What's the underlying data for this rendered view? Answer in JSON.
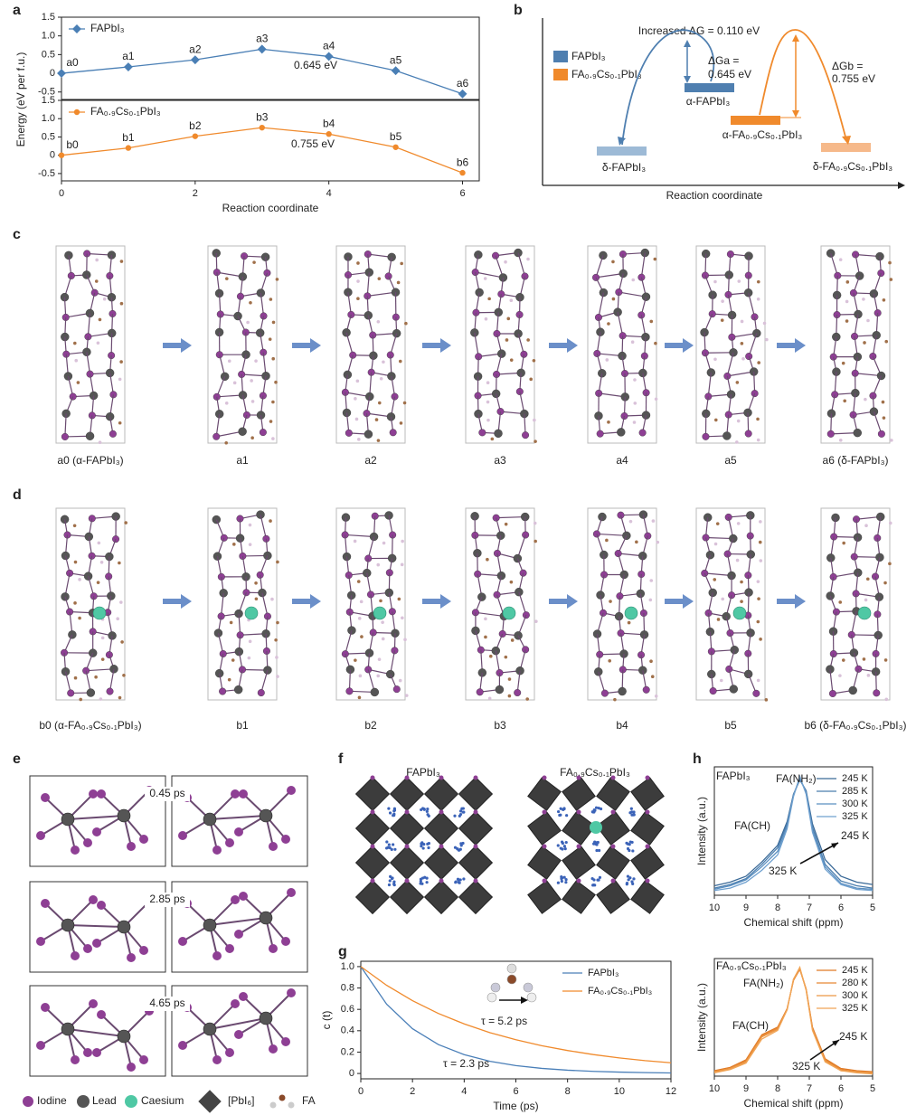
{
  "panel_labels": [
    "a",
    "b",
    "c",
    "d",
    "e",
    "f",
    "g",
    "h"
  ],
  "chart_data": [
    {
      "type": "line",
      "y_label": "Energy (eV per f.u.)",
      "x": [
        0,
        1,
        2,
        3,
        4,
        5,
        6
      ],
      "xlim": [
        0,
        6.25
      ],
      "ylim": [
        -0.7,
        1.5
      ],
      "yticks": [
        -0.5,
        0,
        0.5,
        {
          "value": 1,
          "label": "1.0"
        },
        1.5
      ],
      "legend": "upper left",
      "markers": true,
      "series": [
        {
          "name": "FAPbI₃",
          "color": "#4a7fb5",
          "values": [
            0,
            0.17,
            0.36,
            0.645,
            0.45,
            0.07,
            -0.55
          ],
          "labels": [
            "a0",
            "a1",
            "a2",
            "a3",
            "a4",
            "a5",
            "a6"
          ]
        }
      ],
      "annotations": [
        "0.645 eV"
      ]
    },
    {
      "type": "line",
      "x_label": "Reaction coordinate",
      "x": [
        0,
        1,
        2,
        3,
        4,
        5,
        6
      ],
      "xlim": [
        0,
        6.25
      ],
      "ylim": [
        -0.7,
        1.5
      ],
      "xticks": [
        0,
        2,
        4,
        6
      ],
      "yticks": [
        -0.5,
        0,
        0.5,
        {
          "value": 1,
          "label": "1.0"
        },
        1.5
      ],
      "legend": "upper left",
      "markers": true,
      "series": [
        {
          "name": "FA₀.₉Cs₀.₁PbI₃",
          "color": "#f08a2c",
          "values": [
            0,
            0.2,
            0.52,
            0.755,
            0.58,
            0.22,
            -0.48
          ],
          "labels": [
            "b0",
            "b1",
            "b2",
            "b3",
            "b4",
            "b5",
            "b6"
          ]
        }
      ],
      "annotations": [
        "0.755 eV"
      ]
    },
    {
      "type": "line",
      "x_label": "Time (ps)",
      "y_label": "c (t)",
      "x": [
        0,
        1,
        2,
        3,
        4,
        5,
        6,
        7,
        8,
        9,
        10,
        11,
        12
      ],
      "xlim": [
        0,
        12
      ],
      "ylim": [
        -0.05,
        1.05
      ],
      "xticks": [
        0,
        2,
        4,
        6,
        8,
        10,
        12
      ],
      "yticks": [
        0,
        0.2,
        0.4,
        0.6,
        0.8,
        {
          "value": 1,
          "label": "1.0"
        }
      ],
      "legend": "upper right",
      "series": [
        {
          "name": "FAPbI₃",
          "color": "#4a7fb8",
          "values": [
            1,
            0.648,
            0.419,
            0.271,
            0.176,
            0.114,
            0.074,
            0.048,
            0.031,
            0.02,
            0.013,
            0.008,
            0.005
          ]
        },
        {
          "name": "FA₀.₉Cs₀.₁PbI₃",
          "color": "#f08a2c",
          "values": [
            1,
            0.825,
            0.681,
            0.562,
            0.464,
            0.382,
            0.316,
            0.26,
            0.215,
            0.177,
            0.146,
            0.12,
            0.1
          ]
        }
      ],
      "annotations": [
        "τ = 2.3 ps",
        "τ = 5.2 ps"
      ]
    },
    {
      "type": "line",
      "x_label": "Chemical shift (ppm)",
      "y_label": "Intensity (a.u.)",
      "x": [
        10,
        9.5,
        9,
        8.5,
        8,
        7.7,
        7.5,
        7.3,
        7.1,
        6.9,
        6.5,
        6,
        5.5,
        5
      ],
      "xlim": [
        10,
        5
      ],
      "ylim": [
        0,
        1.08
      ],
      "xticks": [
        10,
        9,
        8,
        7,
        6,
        5
      ],
      "legend": "upper right",
      "series": [
        {
          "name": "245 K",
          "color": "#3b6a98",
          "values": [
            0.08,
            0.11,
            0.16,
            0.28,
            0.42,
            0.62,
            0.85,
            0.97,
            0.88,
            0.6,
            0.3,
            0.16,
            0.11,
            0.09
          ]
        },
        {
          "name": "285 K",
          "color": "#4a7dae",
          "values": [
            0.06,
            0.09,
            0.14,
            0.26,
            0.4,
            0.6,
            0.84,
            0.98,
            0.87,
            0.57,
            0.26,
            0.12,
            0.08,
            0.06
          ]
        },
        {
          "name": "300 K",
          "color": "#5b8fc0",
          "values": [
            0.05,
            0.08,
            0.13,
            0.24,
            0.37,
            0.58,
            0.84,
            0.99,
            0.86,
            0.55,
            0.24,
            0.1,
            0.06,
            0.05
          ]
        },
        {
          "name": "325 K",
          "color": "#6fa0cf",
          "values": [
            0.04,
            0.06,
            0.11,
            0.21,
            0.34,
            0.56,
            0.83,
            1,
            0.85,
            0.53,
            0.22,
            0.09,
            0.05,
            0.04
          ]
        }
      ],
      "annotations": [
        "FAPbI₃",
        "FA(NH₂)",
        "FA(CH)",
        "245 K",
        "325 K"
      ]
    },
    {
      "type": "line",
      "x_label": "Chemical shift (ppm)",
      "y_label": "Intensity (a.u.)",
      "x": [
        10,
        9.5,
        9,
        8.5,
        8,
        7.7,
        7.5,
        7.3,
        7.1,
        6.9,
        6.5,
        6,
        5.5,
        5
      ],
      "xlim": [
        10,
        5
      ],
      "ylim": [
        0,
        1.08
      ],
      "xticks": [
        10,
        9,
        8,
        7,
        6,
        5
      ],
      "legend": "upper right",
      "series": [
        {
          "name": "245 K",
          "color": "#e07a25",
          "values": [
            0.05,
            0.08,
            0.15,
            0.38,
            0.45,
            0.62,
            0.88,
            0.98,
            0.8,
            0.45,
            0.16,
            0.07,
            0.05,
            0.04
          ]
        },
        {
          "name": "280 K",
          "color": "#e68733",
          "values": [
            0.04,
            0.07,
            0.14,
            0.37,
            0.44,
            0.62,
            0.88,
            0.99,
            0.8,
            0.44,
            0.15,
            0.06,
            0.04,
            0.03
          ]
        },
        {
          "name": "300 K",
          "color": "#ec9643",
          "values": [
            0.04,
            0.07,
            0.13,
            0.36,
            0.43,
            0.61,
            0.89,
            0.99,
            0.79,
            0.43,
            0.14,
            0.05,
            0.04,
            0.03
          ]
        },
        {
          "name": "325 K",
          "color": "#f1a556",
          "values": [
            0.03,
            0.06,
            0.12,
            0.34,
            0.42,
            0.61,
            0.89,
            1,
            0.79,
            0.42,
            0.13,
            0.05,
            0.03,
            0.02
          ]
        }
      ],
      "annotations": [
        "FA₀.₉Cs₀.₁PbI₃",
        "FA(NH₂)",
        "FA(CH)",
        "245 K",
        "325 K"
      ]
    }
  ],
  "panel_b": {
    "legend": [
      "FAPbI₃",
      "FA₀.₉Cs₀.₁PbI₃"
    ],
    "increased": "Increased ΔG = 0.110 eV",
    "dga": [
      "ΔGa =",
      "0.645 eV"
    ],
    "dgb": [
      "ΔGb =",
      "0.755 eV"
    ],
    "states": [
      "δ-FAPbI₃",
      "α-FAPbI₃",
      "α-FA₀.₉Cs₀.₁PbI₃",
      "δ-FA₀.₉Cs₀.₁PbI₃"
    ],
    "x_label": "Reaction coordinate"
  },
  "panel_c": {
    "labels": [
      "a0 (α-FAPbI₃)",
      "a1",
      "a2",
      "a3",
      "a4",
      "a5",
      "a6 (δ-FAPbI₃)"
    ]
  },
  "panel_d": {
    "labels": [
      "b0 (α-FA₀.₉Cs₀.₁PbI₃)",
      "b1",
      "b2",
      "b3",
      "b4",
      "b5",
      "b6 (δ-FA₀.₉Cs₀.₁PbI₃)"
    ]
  },
  "panel_e": {
    "times": [
      "0.45 ps",
      "2.85 ps",
      "4.65 ps"
    ],
    "legend": [
      "Iodine",
      "Lead",
      "Caesium",
      "[PbI₆]",
      "FA"
    ]
  },
  "panel_f": {
    "titles": [
      "FAPbI₃",
      "FA₀.₉Cs₀.₁PbI₃"
    ]
  }
}
